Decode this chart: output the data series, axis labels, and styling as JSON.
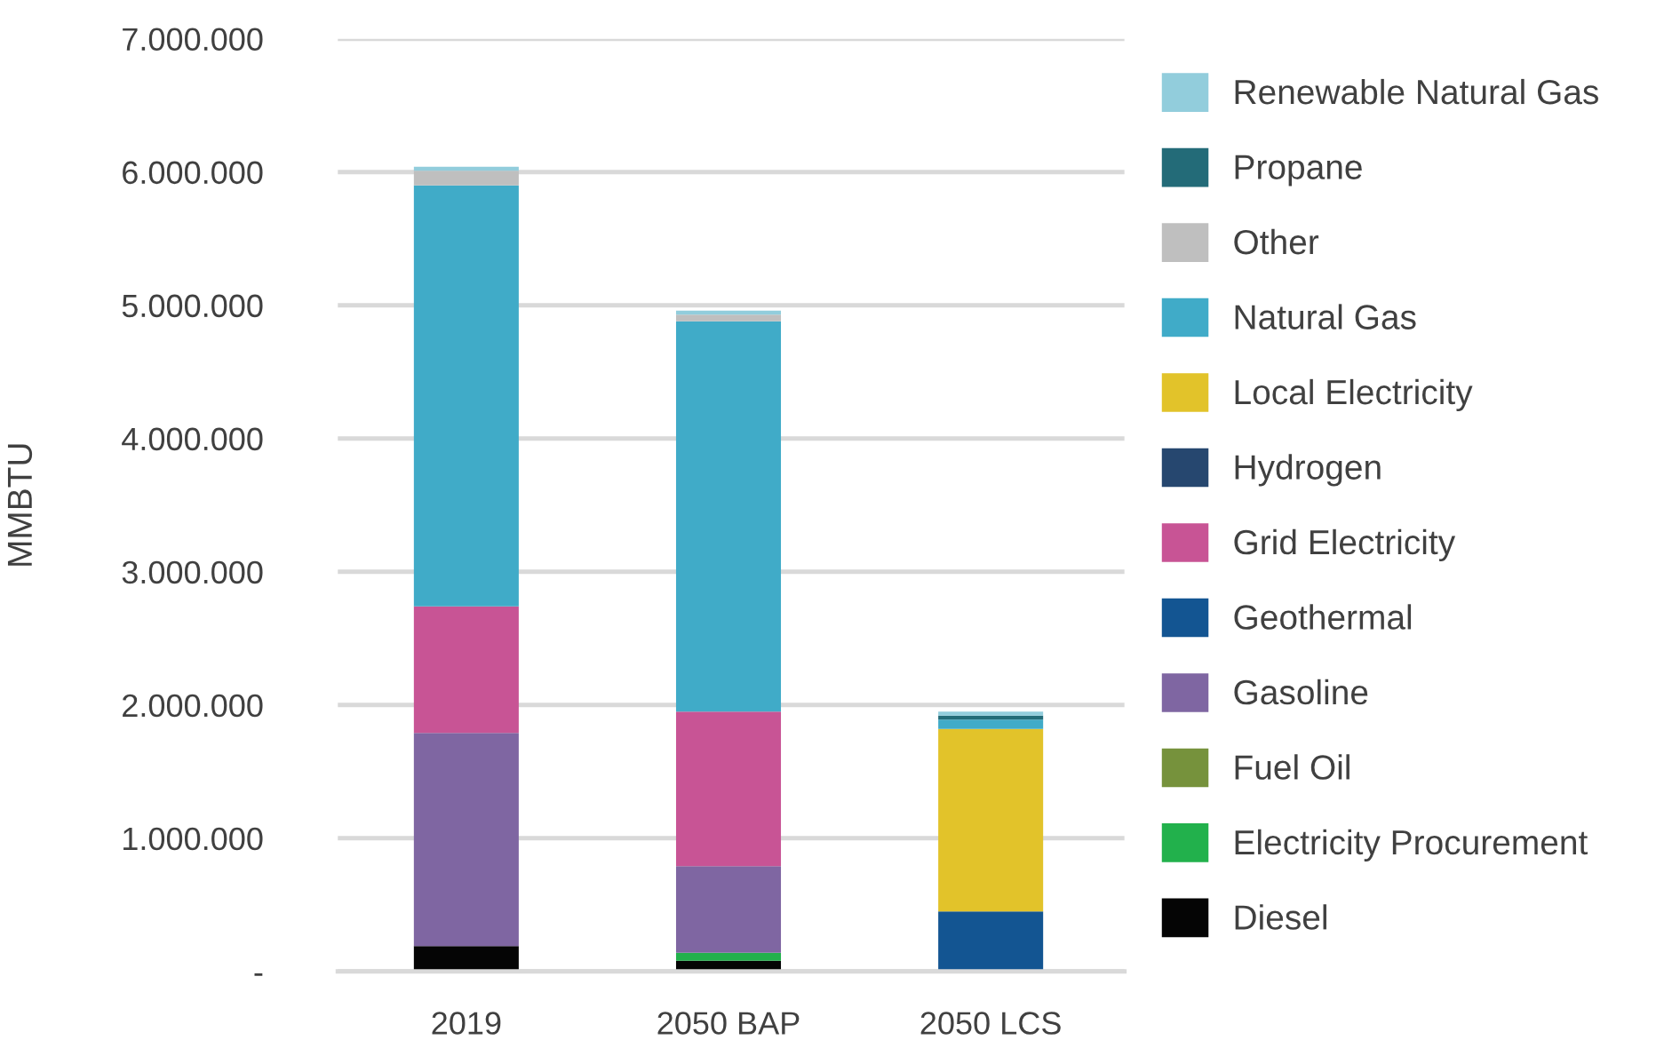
{
  "chart_data": {
    "type": "bar",
    "stacked": true,
    "ylabel": "MMBTU",
    "categories": [
      "2019",
      "2050 BAP",
      "2050 LCS"
    ],
    "series": [
      {
        "name": "Diesel",
        "color": "#050505",
        "values": [
          190000,
          80000,
          null
        ]
      },
      {
        "name": "Electricity Procurement",
        "color": "#22b14c",
        "values": [
          null,
          60000,
          null
        ]
      },
      {
        "name": "Fuel Oil",
        "color": "#76923c",
        "values": [
          null,
          null,
          null
        ]
      },
      {
        "name": "Gasoline",
        "color": "#7f66a2",
        "values": [
          1600000,
          650000,
          null
        ]
      },
      {
        "name": "Geothermal",
        "color": "#135592",
        "values": [
          null,
          null,
          450000
        ]
      },
      {
        "name": "Grid Electricity",
        "color": "#c85495",
        "values": [
          950000,
          1160000,
          null
        ]
      },
      {
        "name": "Hydrogen",
        "color": "#26476f",
        "values": [
          null,
          null,
          null
        ]
      },
      {
        "name": "Local Electricity",
        "color": "#e2c32a",
        "values": [
          null,
          null,
          1370000
        ]
      },
      {
        "name": "Natural Gas",
        "color": "#40abc8",
        "values": [
          3160000,
          2930000,
          70000
        ]
      },
      {
        "name": "Other",
        "color": "#bfbfbf",
        "values": [
          110000,
          50000,
          null
        ]
      },
      {
        "name": "Propane",
        "color": "#236b78",
        "values": [
          null,
          null,
          30000
        ]
      },
      {
        "name": "Renewable Natural Gas",
        "color": "#92cddc",
        "values": [
          30000,
          30000,
          30000
        ]
      }
    ],
    "ylim": [
      0,
      7000000
    ],
    "yticks": [
      {
        "value": 0,
        "label": "-"
      },
      {
        "value": 1000000,
        "label": "1.000.000"
      },
      {
        "value": 2000000,
        "label": "2.000.000"
      },
      {
        "value": 3000000,
        "label": "3.000.000"
      },
      {
        "value": 4000000,
        "label": "4.000.000"
      },
      {
        "value": 5000000,
        "label": "5.000.000"
      },
      {
        "value": 6000000,
        "label": "6.000.000"
      },
      {
        "value": 7000000,
        "label": "7.000.000"
      }
    ],
    "grid": "y",
    "legend": "right"
  }
}
